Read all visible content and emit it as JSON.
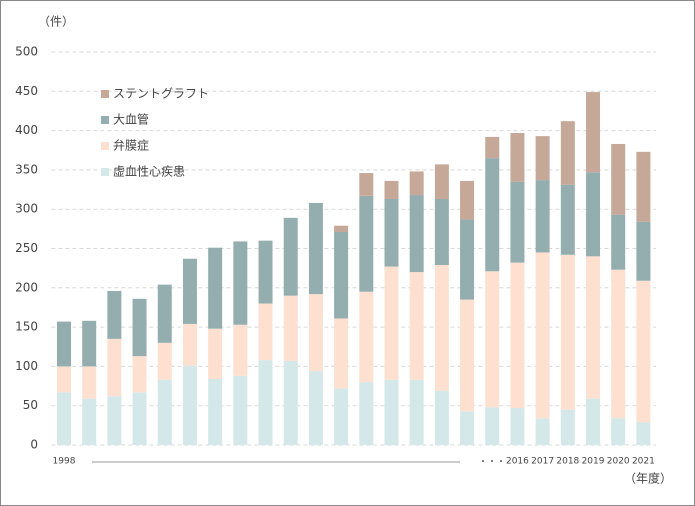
{
  "chart_data": {
    "type": "stacked_bar",
    "y_unit_label": "（件）",
    "x_unit_label": "（年度）",
    "annotation": "・・・",
    "categories": [
      "1998",
      null,
      null,
      null,
      null,
      null,
      null,
      null,
      null,
      null,
      null,
      null,
      null,
      null,
      null,
      null,
      null,
      null,
      "2016",
      "2017",
      "2018",
      "2019",
      "2020",
      "2021"
    ],
    "series": [
      {
        "name": "虚血性心疾患",
        "color": "#d4e8ea",
        "values": [
          67,
          59,
          62,
          67,
          83,
          101,
          84,
          88,
          108,
          107,
          94,
          72,
          80,
          83,
          83,
          69,
          43,
          48,
          47,
          34,
          45,
          59,
          34,
          29
        ]
      },
      {
        "name": "弁膜症",
        "color": "#fde0d0",
        "values": [
          33,
          41,
          73,
          46,
          47,
          53,
          64,
          65,
          72,
          83,
          98,
          89,
          115,
          144,
          137,
          160,
          142,
          173,
          185,
          211,
          197,
          181,
          189,
          180
        ]
      },
      {
        "name": "大血管",
        "color": "#94aeb0",
        "values": [
          57,
          58,
          61,
          73,
          74,
          83,
          103,
          106,
          80,
          99,
          116,
          110,
          122,
          86,
          98,
          84,
          102,
          144,
          103,
          92,
          89,
          107,
          70,
          75
        ]
      },
      {
        "name": "ステントグラフト",
        "color": "#c6a898",
        "values": [
          0,
          0,
          0,
          0,
          0,
          0,
          0,
          0,
          0,
          0,
          0,
          8,
          29,
          23,
          30,
          44,
          49,
          27,
          62,
          56,
          81,
          102,
          90,
          89
        ]
      }
    ],
    "ylim": [
      0,
      500
    ],
    "yticks": [
      0,
      50,
      100,
      150,
      200,
      250,
      300,
      350,
      400,
      450,
      500
    ],
    "grid": true
  }
}
